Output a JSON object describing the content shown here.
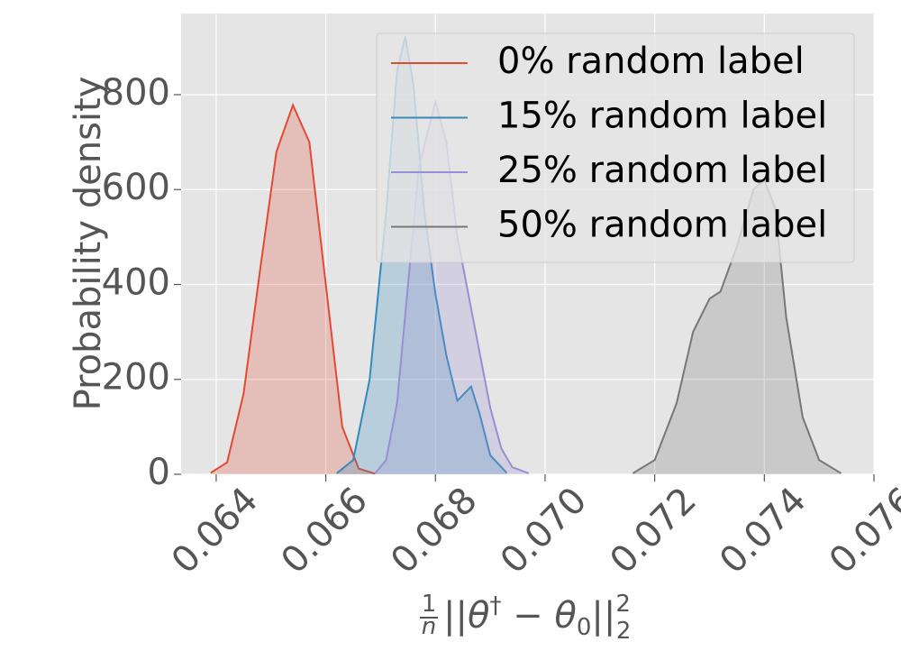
{
  "chart_data": {
    "type": "line",
    "fill_under": true,
    "y_label": "Probability density",
    "x_label": {
      "numerator": "1",
      "denominator": "n",
      "main": "||θ",
      "sup": "†",
      "mid": " − θ",
      "sub": "0",
      "end": "||",
      "sub2": "2",
      "sup2": "2"
    },
    "xlim": [
      0.06336,
      0.076
    ],
    "ylim": [
      0,
      971
    ],
    "xticks": [
      0.064,
      0.066,
      0.068,
      {
        "value": 0.07,
        "label": "0.070"
      },
      0.072,
      0.074,
      0.076
    ],
    "yticks": [
      0,
      200,
      400,
      600,
      800
    ],
    "grid": true,
    "legend": "upper right",
    "series": [
      {
        "name": "0% random label",
        "color": "#E24A33",
        "x": [
          0.0639,
          0.0642,
          0.0645,
          0.0648,
          0.0651,
          0.0654,
          0.0657,
          0.066,
          0.0663,
          0.0666,
          0.0669
        ],
        "values": [
          3,
          25,
          170,
          430,
          680,
          778,
          700,
          400,
          100,
          12,
          1
        ]
      },
      {
        "name": "15% random label",
        "color": "#348ABD",
        "x": [
          0.0662,
          0.0665,
          0.0668,
          0.0671,
          0.0673,
          0.06745,
          0.0676,
          0.0678,
          0.068,
          0.0682,
          0.0684,
          0.06865,
          0.0688,
          0.069,
          0.0693
        ],
        "values": [
          2,
          30,
          200,
          550,
          850,
          922,
          820,
          550,
          380,
          250,
          155,
          185,
          130,
          40,
          3
        ]
      },
      {
        "name": "25% random label",
        "color": "#988ED5",
        "x": [
          0.0669,
          0.0671,
          0.0673,
          0.0675,
          0.0677,
          0.068,
          0.0682,
          0.0684,
          0.0686,
          0.0688,
          0.069,
          0.0692,
          0.0694,
          0.0697
        ],
        "values": [
          2,
          30,
          150,
          400,
          650,
          785,
          700,
          500,
          380,
          260,
          140,
          55,
          15,
          2
        ]
      },
      {
        "name": "50% random label",
        "color": "#777777",
        "x": [
          0.0716,
          0.072,
          0.0724,
          0.0727,
          0.073,
          0.0732,
          0.0735,
          0.0738,
          0.074,
          0.0742,
          0.0744,
          0.0747,
          0.075,
          0.0754
        ],
        "values": [
          2,
          30,
          150,
          300,
          370,
          385,
          480,
          600,
          620,
          560,
          330,
          120,
          30,
          2
        ]
      }
    ]
  }
}
